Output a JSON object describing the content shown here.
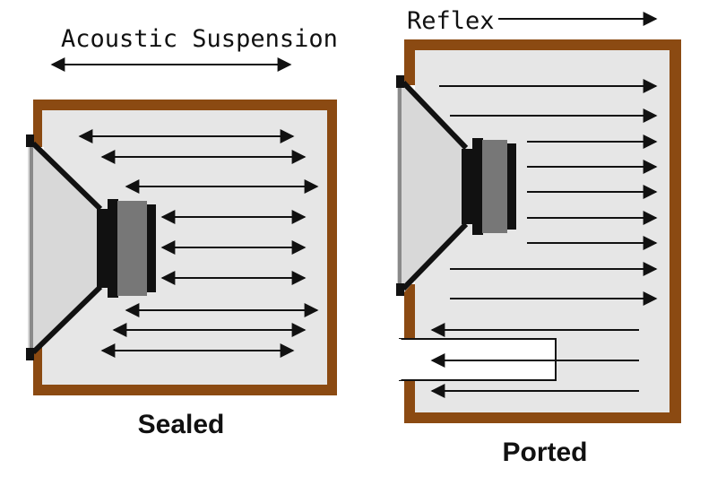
{
  "labels": {
    "acoustic_suspension": "Acoustic Suspension",
    "reflex": "Reflex",
    "sealed": "Sealed",
    "ported": "Ported"
  },
  "colors": {
    "cabinet_wall": "#8B4A12",
    "cabinet_interior": "#E6E6E6",
    "driver_magnet": "#777777",
    "driver_body": "#111111",
    "cone_surface": "#D8D8D8",
    "arrow": "#111111",
    "port_tube": "#FFFFFF"
  },
  "icons": {
    "double_arrow": "double-headed-arrow-icon",
    "right_arrow": "right-arrow-icon",
    "left_arrow": "left-arrow-icon"
  }
}
